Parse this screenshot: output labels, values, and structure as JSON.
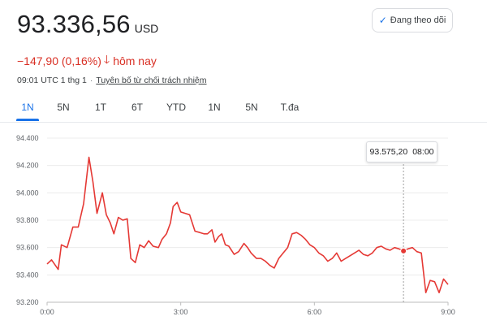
{
  "quote": {
    "price": "93.336,56",
    "currency": "USD",
    "change": "−147,90 (0,16%)",
    "change_period": "hôm nay",
    "timestamp": "09:01 UTC 1 thg 1",
    "separator": "·",
    "disclaimer": "Tuyên bố từ chối trách nhiệm",
    "down_color": "#d93025"
  },
  "follow_button": {
    "label": "Đang theo dõi",
    "icon": "check-icon"
  },
  "tabs": [
    {
      "label": "1N",
      "active": true
    },
    {
      "label": "5N",
      "active": false
    },
    {
      "label": "1T",
      "active": false
    },
    {
      "label": "6T",
      "active": false
    },
    {
      "label": "YTD",
      "active": false
    },
    {
      "label": "1N",
      "active": false
    },
    {
      "label": "5N",
      "active": false
    },
    {
      "label": "T.đa",
      "active": false
    }
  ],
  "tooltip": {
    "value": "93.575,20",
    "time": "08:00"
  },
  "chart_data": {
    "type": "line",
    "title": "",
    "xlabel": "",
    "ylabel": "",
    "line_color": "#e53935",
    "grid": true,
    "ylim": [
      93200,
      94400
    ],
    "yticks": [
      93200,
      93400,
      93600,
      93800,
      94000,
      94200,
      94400
    ],
    "ytick_labels": [
      "93.200",
      "93.400",
      "93.600",
      "93.800",
      "94.000",
      "94.200",
      "94.400"
    ],
    "xlim": [
      0,
      9
    ],
    "xticks": [
      0,
      3,
      6,
      9
    ],
    "xtick_labels": [
      "0:00",
      "3:00",
      "6:00",
      "9:00"
    ],
    "highlight": {
      "x": 8,
      "y": 93575.2
    },
    "series": [
      {
        "x": [
          0,
          0.1,
          0.25,
          0.32,
          0.45,
          0.58,
          0.7,
          0.82,
          0.94,
          1.03,
          1.12,
          1.24,
          1.33,
          1.42,
          1.5,
          1.6,
          1.7,
          1.8,
          1.88,
          1.98,
          2.08,
          2.18,
          2.28,
          2.38,
          2.5,
          2.58,
          2.68,
          2.77,
          2.83,
          2.92,
          3.0,
          3.1,
          3.2,
          3.32,
          3.43,
          3.52,
          3.6,
          3.7,
          3.77,
          3.85,
          3.92,
          4.0,
          4.08,
          4.2,
          4.3,
          4.42,
          4.5,
          4.58,
          4.7,
          4.8,
          4.9,
          5.0,
          5.1,
          5.2,
          5.3,
          5.4,
          5.5,
          5.6,
          5.7,
          5.8,
          5.9,
          6.0,
          6.1,
          6.2,
          6.3,
          6.4,
          6.5,
          6.6,
          6.7,
          6.8,
          6.9,
          7.0,
          7.1,
          7.2,
          7.3,
          7.4,
          7.5,
          7.6,
          7.7,
          7.8,
          7.9,
          8.0,
          8.1,
          8.2,
          8.25,
          8.3,
          8.4,
          8.5,
          8.6,
          8.7,
          8.8,
          8.9,
          9.0
        ],
        "y": [
          93480,
          93510,
          93440,
          93620,
          93600,
          93750,
          93750,
          93920,
          94260,
          94080,
          93850,
          94000,
          93840,
          93780,
          93700,
          93820,
          93800,
          93810,
          93520,
          93490,
          93620,
          93600,
          93650,
          93610,
          93600,
          93660,
          93700,
          93780,
          93900,
          93930,
          93860,
          93850,
          93840,
          93720,
          93710,
          93700,
          93700,
          93730,
          93640,
          93680,
          93700,
          93620,
          93610,
          93550,
          93570,
          93630,
          93600,
          93560,
          93520,
          93520,
          93500,
          93470,
          93450,
          93520,
          93560,
          93600,
          93700,
          93710,
          93690,
          93660,
          93620,
          93600,
          93560,
          93540,
          93500,
          93520,
          93560,
          93500,
          93520,
          93540,
          93560,
          93580,
          93550,
          93540,
          93560,
          93600,
          93610,
          93590,
          93580,
          93600,
          93590,
          93575.2,
          93590,
          93600,
          93585,
          93570,
          93560,
          93270,
          93360,
          93350,
          93270,
          93370,
          93330
        ]
      }
    ]
  }
}
